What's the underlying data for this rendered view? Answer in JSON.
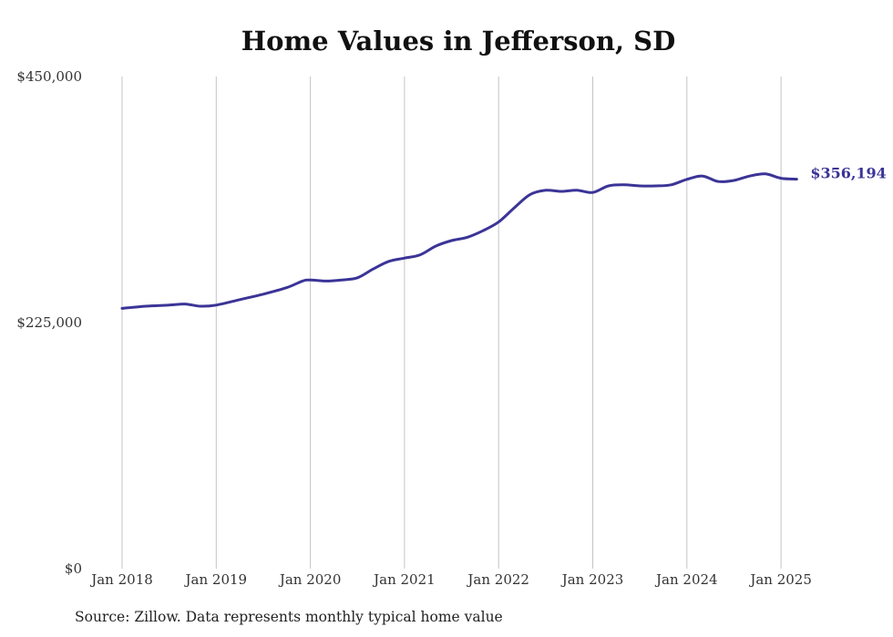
{
  "chart_data": {
    "type": "line",
    "title": "Home Values in Jefferson, SD",
    "xlabel": "",
    "ylabel": "",
    "x_tick_labels": [
      "Jan 2018",
      "Jan 2019",
      "Jan 2020",
      "Jan 2021",
      "Jan 2022",
      "Jan 2023",
      "Jan 2024",
      "Jan 2025"
    ],
    "y_tick_labels": [
      "$0",
      "$225,000",
      "$450,000"
    ],
    "y_ticks": [
      0,
      225000,
      450000
    ],
    "ylim": [
      0,
      450000
    ],
    "xlim": [
      "2018-01",
      "2025-03"
    ],
    "grid": "vertical",
    "end_label": "$356,194",
    "series": [
      {
        "color": "#3b3497",
        "x": [
          "2018-01",
          "2018-04",
          "2018-07",
          "2018-09",
          "2018-11",
          "2019-01",
          "2019-04",
          "2019-07",
          "2019-10",
          "2019-12",
          "2020-01",
          "2020-03",
          "2020-05",
          "2020-07",
          "2020-09",
          "2020-11",
          "2021-01",
          "2021-03",
          "2021-05",
          "2021-07",
          "2021-09",
          "2021-11",
          "2022-01",
          "2022-03",
          "2022-05",
          "2022-07",
          "2022-09",
          "2022-11",
          "2023-01",
          "2023-03",
          "2023-05",
          "2023-07",
          "2023-09",
          "2023-11",
          "2024-01",
          "2024-03",
          "2024-05",
          "2024-07",
          "2024-09",
          "2024-11",
          "2025-01",
          "2025-03"
        ],
        "values": [
          238000,
          240000,
          241000,
          242000,
          240000,
          241000,
          246000,
          251000,
          257000,
          263000,
          264000,
          263000,
          264000,
          266000,
          274000,
          281000,
          284000,
          287000,
          295000,
          300000,
          303000,
          309000,
          317000,
          330000,
          342000,
          346000,
          345000,
          346000,
          344000,
          350000,
          351000,
          350000,
          350000,
          351000,
          356000,
          359000,
          354000,
          355000,
          359000,
          361000,
          357000,
          356194
        ]
      }
    ]
  },
  "source_note": "Source: Zillow. Data represents monthly typical home value"
}
